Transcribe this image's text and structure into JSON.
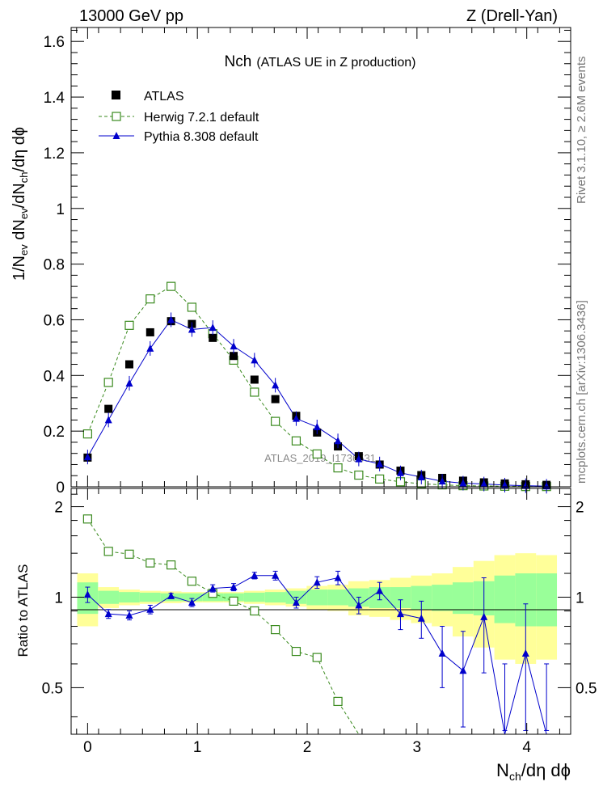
{
  "header": {
    "energy_label": "13000 GeV pp",
    "process_label": "Z (Drell-Yan)"
  },
  "side_labels": {
    "rivet": "Rivet 3.1.10, ≥ 2.6M events",
    "source": "mcplots.cern.ch [arXiv:1306.3436]"
  },
  "chart_data": {
    "type": "scatter",
    "title_main": "Nch",
    "title_sub": "(ATLAS UE in Z production)",
    "watermark": "ATLAS_2019_I1736531",
    "xlabel": "N_ch/dη dϕ",
    "ylabel": "1/N_ev dN_ev/dN_ch/dη dϕ",
    "ratio_ylabel": "Ratio to ATLAS",
    "xlim": [
      -0.15,
      4.4
    ],
    "ylim": [
      0,
      1.65
    ],
    "ratio_ylim": [
      0.35,
      2.3
    ],
    "x_ticks": [
      0,
      1,
      2,
      3,
      4
    ],
    "y_ticks": [
      0,
      0.2,
      0.4,
      0.6,
      0.8,
      1,
      1.2,
      1.4,
      1.6
    ],
    "y_tick_labels": [
      "0",
      "0.2",
      "0.4",
      "0.6",
      "0.8",
      "1",
      "1.2",
      "1.4",
      "1.6"
    ],
    "ratio_ticks": [
      0.5,
      1,
      2
    ],
    "ratio_tick_labels": [
      "0.5",
      "1",
      "2"
    ],
    "legend": [
      {
        "name": "ATLAS",
        "marker": "filled-square",
        "color": "#000000"
      },
      {
        "name": "Herwig 7.2.1 default",
        "marker": "open-square-dashed",
        "color": "#3a8a1e"
      },
      {
        "name": "Pythia 8.308 default",
        "marker": "filled-triangle-line",
        "color": "#0000cc"
      }
    ],
    "colors": {
      "band_outer": "#ffff99",
      "band_inner": "#99ff99",
      "herwig": "#3a8a1e",
      "pythia": "#0000cc",
      "data": "#000000"
    },
    "x": [
      0.0,
      0.19,
      0.38,
      0.57,
      0.76,
      0.95,
      1.14,
      1.33,
      1.52,
      1.71,
      1.9,
      2.09,
      2.28,
      2.47,
      2.66,
      2.85,
      3.04,
      3.23,
      3.42,
      3.61,
      3.8,
      3.99,
      4.18
    ],
    "series": [
      {
        "name": "ATLAS",
        "values": [
          0.105,
          0.28,
          0.44,
          0.555,
          0.595,
          0.585,
          0.535,
          0.47,
          0.385,
          0.315,
          0.255,
          0.195,
          0.145,
          0.11,
          0.08,
          0.058,
          0.042,
          0.032,
          0.022,
          0.016,
          0.012,
          0.009,
          0.007
        ]
      },
      {
        "name": "Herwig 7.2.1 default",
        "values": [
          0.19,
          0.375,
          0.58,
          0.675,
          0.72,
          0.645,
          0.55,
          0.455,
          0.34,
          0.235,
          0.165,
          0.118,
          0.068,
          0.042,
          0.028,
          0.018,
          0.011,
          0.007,
          0.004,
          0.003,
          0.002,
          0.001,
          0.001
        ]
      },
      {
        "name": "Pythia 8.308 default",
        "values": [
          0.107,
          0.24,
          0.372,
          0.497,
          0.6,
          0.565,
          0.572,
          0.505,
          0.455,
          0.365,
          0.245,
          0.215,
          0.165,
          0.1,
          0.082,
          0.05,
          0.035,
          0.02,
          0.013,
          0.01,
          0.006,
          0.004,
          0.002
        ]
      }
    ],
    "ratio": {
      "herwig": [
        1.82,
        1.42,
        1.39,
        1.3,
        1.28,
        1.13,
        1.03,
        0.97,
        0.9,
        0.78,
        0.66,
        0.63,
        0.45,
        0.35
      ],
      "pythia": [
        1.02,
        0.88,
        0.87,
        0.91,
        1.01,
        0.96,
        1.07,
        1.08,
        1.18,
        1.18,
        0.96,
        1.12,
        1.16,
        0.94,
        1.05,
        0.88,
        0.85,
        0.65,
        0.57,
        0.86,
        0.3,
        0.65,
        0.3
      ],
      "pythia_err": [
        0.06,
        0.03,
        0.03,
        0.03,
        0.02,
        0.03,
        0.03,
        0.03,
        0.03,
        0.04,
        0.04,
        0.05,
        0.06,
        0.06,
        0.07,
        0.1,
        0.12,
        0.15,
        0.2,
        0.3,
        0.3,
        0.3,
        0.3
      ],
      "band_inner": [
        0.12,
        0.05,
        0.04,
        0.035,
        0.03,
        0.03,
        0.03,
        0.03,
        0.035,
        0.04,
        0.05,
        0.06,
        0.06,
        0.07,
        0.08,
        0.08,
        0.09,
        0.1,
        0.12,
        0.13,
        0.18,
        0.2,
        0.2
      ],
      "band_outer": [
        0.2,
        0.08,
        0.06,
        0.05,
        0.045,
        0.04,
        0.04,
        0.04,
        0.05,
        0.06,
        0.07,
        0.09,
        0.1,
        0.13,
        0.14,
        0.16,
        0.18,
        0.2,
        0.26,
        0.32,
        0.38,
        0.4,
        0.38
      ]
    }
  }
}
